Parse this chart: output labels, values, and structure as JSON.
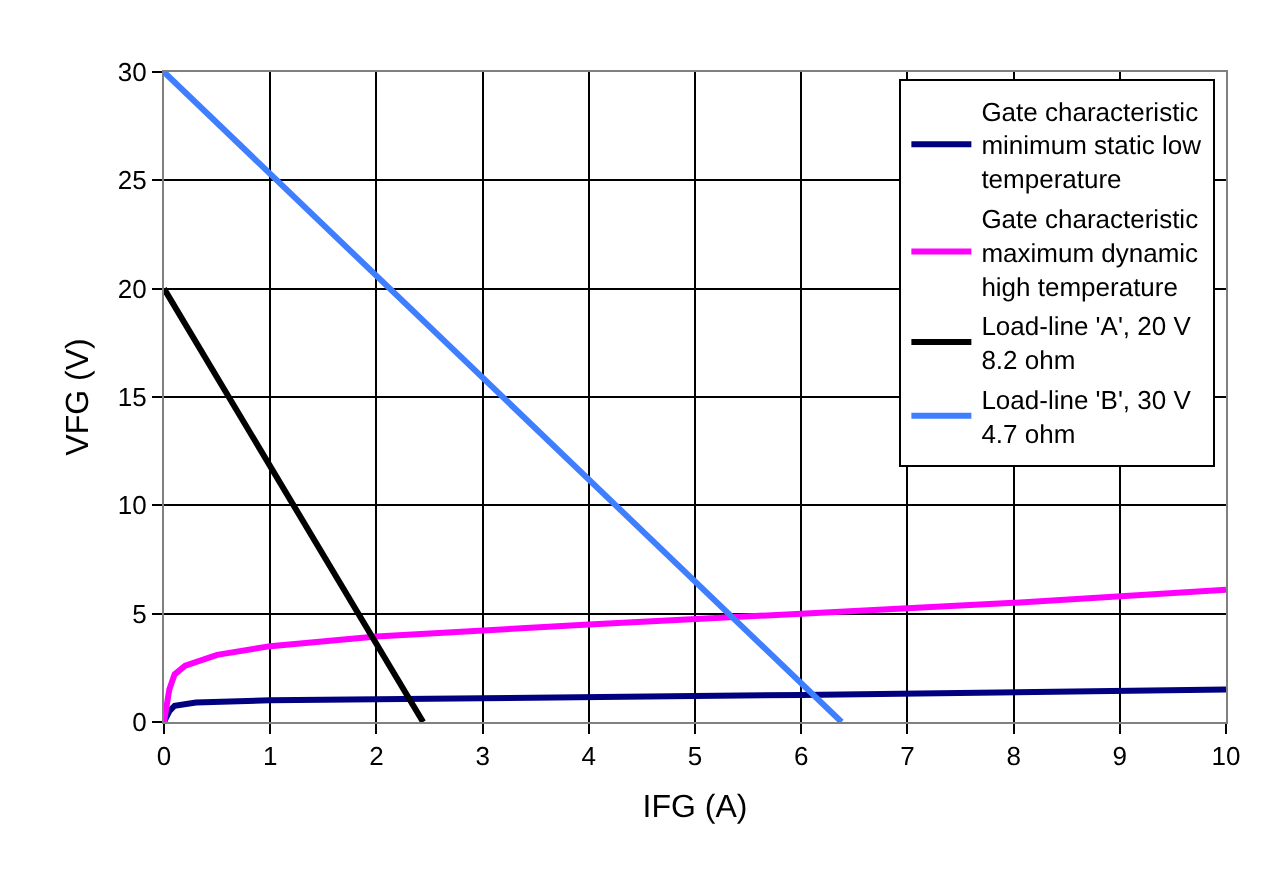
{
  "chart_data": {
    "type": "line",
    "xlabel": "IFG (A)",
    "ylabel": "VFG (V)",
    "xlim": [
      0,
      10
    ],
    "xticks": [
      0,
      1,
      2,
      3,
      4,
      5,
      6,
      7,
      8,
      9,
      10
    ],
    "ylim": [
      0,
      30
    ],
    "yticks": [
      0,
      5,
      10,
      15,
      20,
      25,
      30
    ],
    "grid": true,
    "legend": "top right",
    "marker": "none",
    "line_style": "solid",
    "series": [
      {
        "name": "Gate characteristic minimum static low temperature",
        "color": "#000080",
        "x": [
          0,
          0.05,
          0.1,
          0.3,
          1,
          3,
          6,
          10
        ],
        "values": [
          0,
          0.5,
          0.75,
          0.9,
          1.0,
          1.1,
          1.25,
          1.5
        ]
      },
      {
        "name": "Gate characteristic maximum dynamic high temperature",
        "color": "#ff00ff",
        "x": [
          0,
          0.05,
          0.1,
          0.2,
          0.5,
          1,
          2,
          4,
          6,
          8,
          10
        ],
        "values": [
          0,
          1.5,
          2.2,
          2.6,
          3.1,
          3.5,
          3.95,
          4.5,
          5.0,
          5.5,
          6.1
        ]
      },
      {
        "name": "Load-line 'A', 20 V 8.2 ohm",
        "color": "#000000",
        "x": [
          0,
          2.44
        ],
        "values": [
          20,
          0
        ]
      },
      {
        "name": "Load-line 'B', 30 V 4.7 ohm",
        "color": "#3f7fff",
        "x": [
          0,
          6.38
        ],
        "values": [
          30,
          0
        ]
      }
    ]
  }
}
